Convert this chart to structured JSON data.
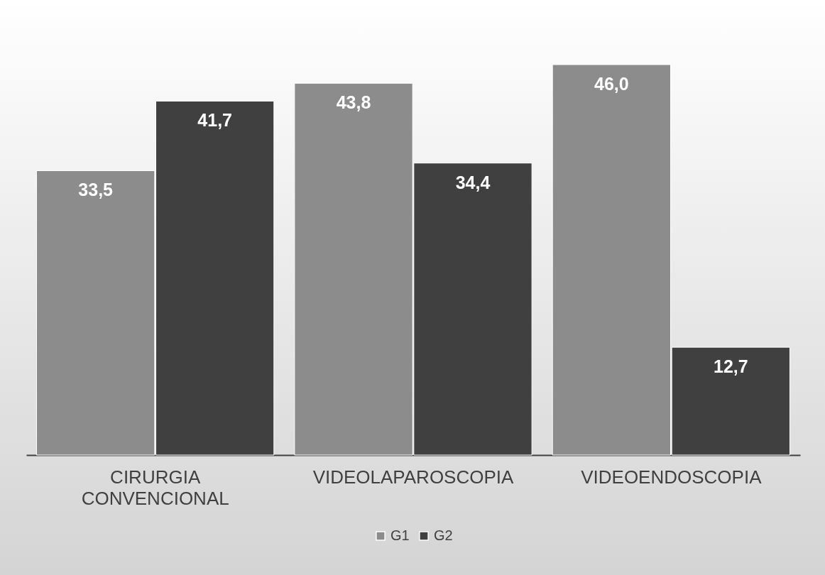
{
  "chart_data": {
    "type": "bar",
    "categories": [
      "CIRURGIA CONVENCIONAL",
      "VIDEOLAPAROSCOPIA",
      "VIDEOENDOSCOPIA"
    ],
    "series": [
      {
        "name": "G1",
        "color": "#8c8c8c",
        "values": [
          33.5,
          43.8,
          46.0
        ],
        "value_labels": [
          "33,5",
          "43,8",
          "46,0"
        ]
      },
      {
        "name": "G2",
        "color": "#404040",
        "values": [
          41.7,
          34.4,
          12.7
        ],
        "value_labels": [
          "41,7",
          "34,4",
          "12,7"
        ]
      }
    ],
    "legend": "bottom",
    "grid": false
  }
}
